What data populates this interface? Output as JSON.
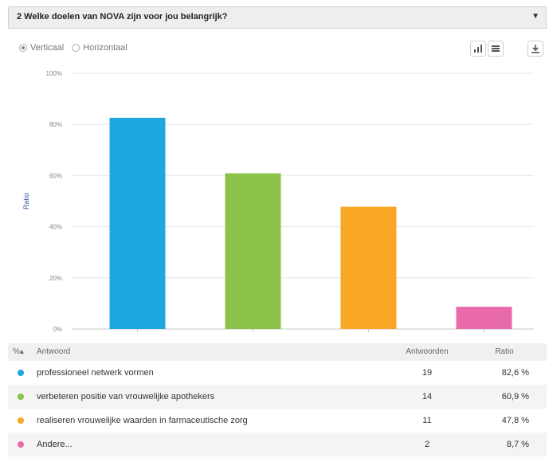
{
  "question": {
    "title": "2 Welke doelen van NOVA zijn voor jou belangrijk?",
    "caret": "▼"
  },
  "orientation": {
    "vertical_label": "Verticaal",
    "horizontal_label": "Horizontaal",
    "selected": "Verticaal"
  },
  "toolbar": {
    "icons": [
      "bar-chart-icon",
      "table-view-icon",
      "download-icon"
    ]
  },
  "chart_data": {
    "type": "bar",
    "categories": [
      "professioneel netwerk vormen",
      "verbeteren positie van vrouwelijke apothekers",
      "realiseren vrouwelijke waarden in farmaceutische zorg",
      "Andere..."
    ],
    "values": [
      82.6,
      60.9,
      47.8,
      8.7
    ],
    "colors": [
      "#1fa8e0",
      "#8bc34a",
      "#f9a825",
      "#e96aaa"
    ],
    "ylabel": "Ratio",
    "ylim": [
      0,
      100
    ],
    "yticks": [
      "0%",
      "20%",
      "40%",
      "60%",
      "80%",
      "100%"
    ],
    "grid": true
  },
  "table": {
    "headers": {
      "sort": "%▴",
      "answer": "Antwoord",
      "count": "Antwoorden",
      "ratio": "Ratio"
    },
    "rows": [
      {
        "label": "professioneel netwerk vormen",
        "count": "19",
        "ratio": "82,6 %",
        "color": "#1fa8e0"
      },
      {
        "label": "verbeteren positie van vrouwelijke apothekers",
        "count": "14",
        "ratio": "60,9 %",
        "color": "#8bc34a"
      },
      {
        "label": "realiseren vrouwelijke waarden in farmaceutische zorg",
        "count": "11",
        "ratio": "47,8 %",
        "color": "#f9a825"
      },
      {
        "label": "Andere...",
        "count": "2",
        "ratio": "8,7 %",
        "color": "#e96aaa"
      }
    ]
  }
}
